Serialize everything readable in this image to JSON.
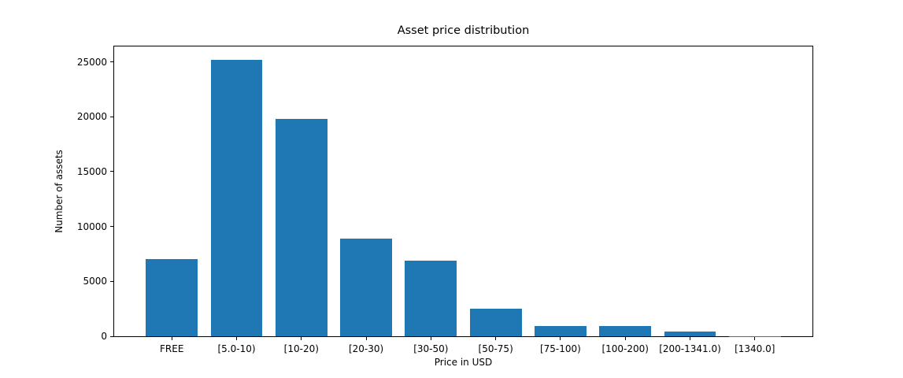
{
  "figure": {
    "background": "#ffffff"
  },
  "chart_data": {
    "type": "bar",
    "title": "Asset price distribution",
    "xlabel": "Price in USD",
    "ylabel": "Number of assets",
    "categories": [
      "FREE",
      "[5.0-10)",
      "[10-20)",
      "[20-30)",
      "[30-50)",
      "[50-75)",
      "[75-100)",
      "[100-200)",
      "[200-1341.0)",
      "[1340.0]"
    ],
    "values": [
      7000,
      25200,
      19800,
      8900,
      6900,
      2500,
      900,
      900,
      400,
      10
    ],
    "yticks": [
      0,
      5000,
      10000,
      15000,
      20000,
      25000
    ],
    "ylim": [
      0,
      26400
    ],
    "xlim": [
      -0.89,
      9.89
    ],
    "bar_width_units": 0.8,
    "bar_color": "#1f77b4",
    "axis_color": "#000000",
    "grid": false,
    "legend": false
  }
}
